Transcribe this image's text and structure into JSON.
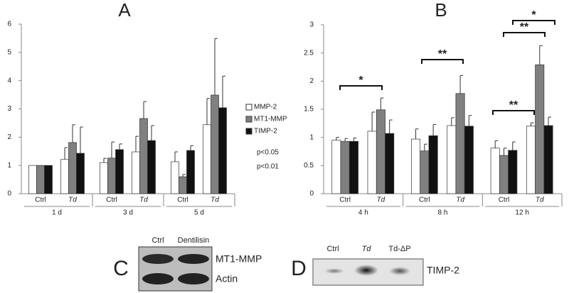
{
  "chart_data": [
    {
      "type": "bar",
      "title": "A",
      "categories": [
        "Ctrl",
        "Td",
        "Ctrl",
        "Td",
        "Ctrl",
        "Td"
      ],
      "groups": [
        "1 d",
        "3 d",
        "5 d"
      ],
      "ylim": [
        0,
        6
      ],
      "yticks": [
        0,
        1,
        2,
        3,
        4,
        5,
        6
      ],
      "grid": false,
      "series": [
        {
          "name": "MMP-2",
          "color": "#ffffff",
          "values": [
            1,
            1.21,
            1.1,
            1.48,
            1.13,
            2.44
          ],
          "errors": [
            0,
            0.42,
            0.15,
            0.55,
            0.35,
            0.93
          ]
        },
        {
          "name": "MT1-MMP",
          "color": "#808080",
          "values": [
            1,
            1.81,
            1.26,
            2.66,
            0.6,
            3.49
          ],
          "errors": [
            0,
            0.63,
            0.57,
            0.6,
            0.08,
            2.0
          ]
        },
        {
          "name": "TIMP-2",
          "color": "#111111",
          "values": [
            1,
            1.43,
            1.56,
            1.88,
            1.53,
            3.04
          ],
          "errors": [
            0,
            0.93,
            0.2,
            0.53,
            0.17,
            1.12
          ]
        }
      ],
      "notes": [
        "p<0.05",
        "p<0.01"
      ]
    },
    {
      "type": "bar",
      "title": "B",
      "categories": [
        "Ctrl",
        "Td",
        "Ctrl",
        "Td",
        "Ctrl",
        "Td"
      ],
      "groups": [
        "4 h",
        "8 h",
        "12 h"
      ],
      "ylim": [
        0,
        3
      ],
      "yticks": [
        0,
        0.5,
        1,
        1.5,
        2,
        2.5,
        3
      ],
      "grid": false,
      "series": [
        {
          "name": "MMP-2",
          "color": "#ffffff",
          "values": [
            0.95,
            1.11,
            0.97,
            1.21,
            0.81,
            1.2
          ],
          "errors": [
            0.05,
            0.34,
            0.18,
            0.14,
            0.13,
            0.06
          ]
        },
        {
          "name": "MT1-MMP",
          "color": "#808080",
          "values": [
            0.93,
            1.49,
            0.76,
            1.78,
            0.68,
            2.29
          ],
          "errors": [
            0.05,
            0.21,
            0.12,
            0.32,
            0.13,
            0.34
          ]
        },
        {
          "name": "TIMP-2",
          "color": "#111111",
          "values": [
            0.93,
            1.07,
            1.03,
            1.2,
            0.77,
            1.21
          ],
          "errors": [
            0.06,
            0.24,
            0.2,
            0.19,
            0.15,
            0.15
          ]
        }
      ],
      "annotations": [
        "*",
        "**",
        "**",
        "**",
        "*"
      ]
    }
  ],
  "blots": [
    {
      "panel": "C",
      "lanes": [
        "Ctrl",
        "Dentilisin"
      ],
      "bands": [
        "MT1-MMP",
        "Actin"
      ]
    },
    {
      "panel": "D",
      "lanes": [
        "Ctrl",
        "Td",
        "Td-ΔP"
      ],
      "bands": [
        "TIMP-2"
      ]
    }
  ]
}
